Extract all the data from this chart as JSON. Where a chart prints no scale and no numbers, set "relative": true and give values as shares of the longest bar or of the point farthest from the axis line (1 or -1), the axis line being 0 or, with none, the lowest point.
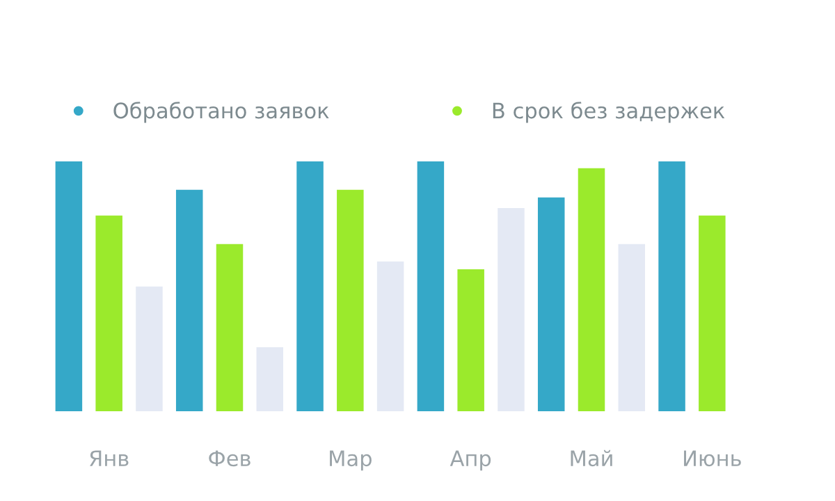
{
  "chart_data": {
    "type": "bar",
    "relative": true,
    "categories": [
      "Янв",
      "Фев",
      "Мар",
      "Апр",
      "Май",
      "Июнь"
    ],
    "series": [
      {
        "name": "Обработано заявок",
        "color": "#35a8c8",
        "values": [
          1,
          0.886,
          1,
          1,
          0.855,
          1
        ]
      },
      {
        "name": "В срок без задержек",
        "color": "#9bea2c",
        "values": [
          0.783,
          0.669,
          0.886,
          0.568,
          0.972,
          0.783
        ]
      },
      {
        "color": "#e4e9f4",
        "values": [
          0.499,
          0.256,
          0.599,
          0.813,
          0.669,
          null
        ]
      }
    ],
    "legend": "top left",
    "grid": false
  }
}
